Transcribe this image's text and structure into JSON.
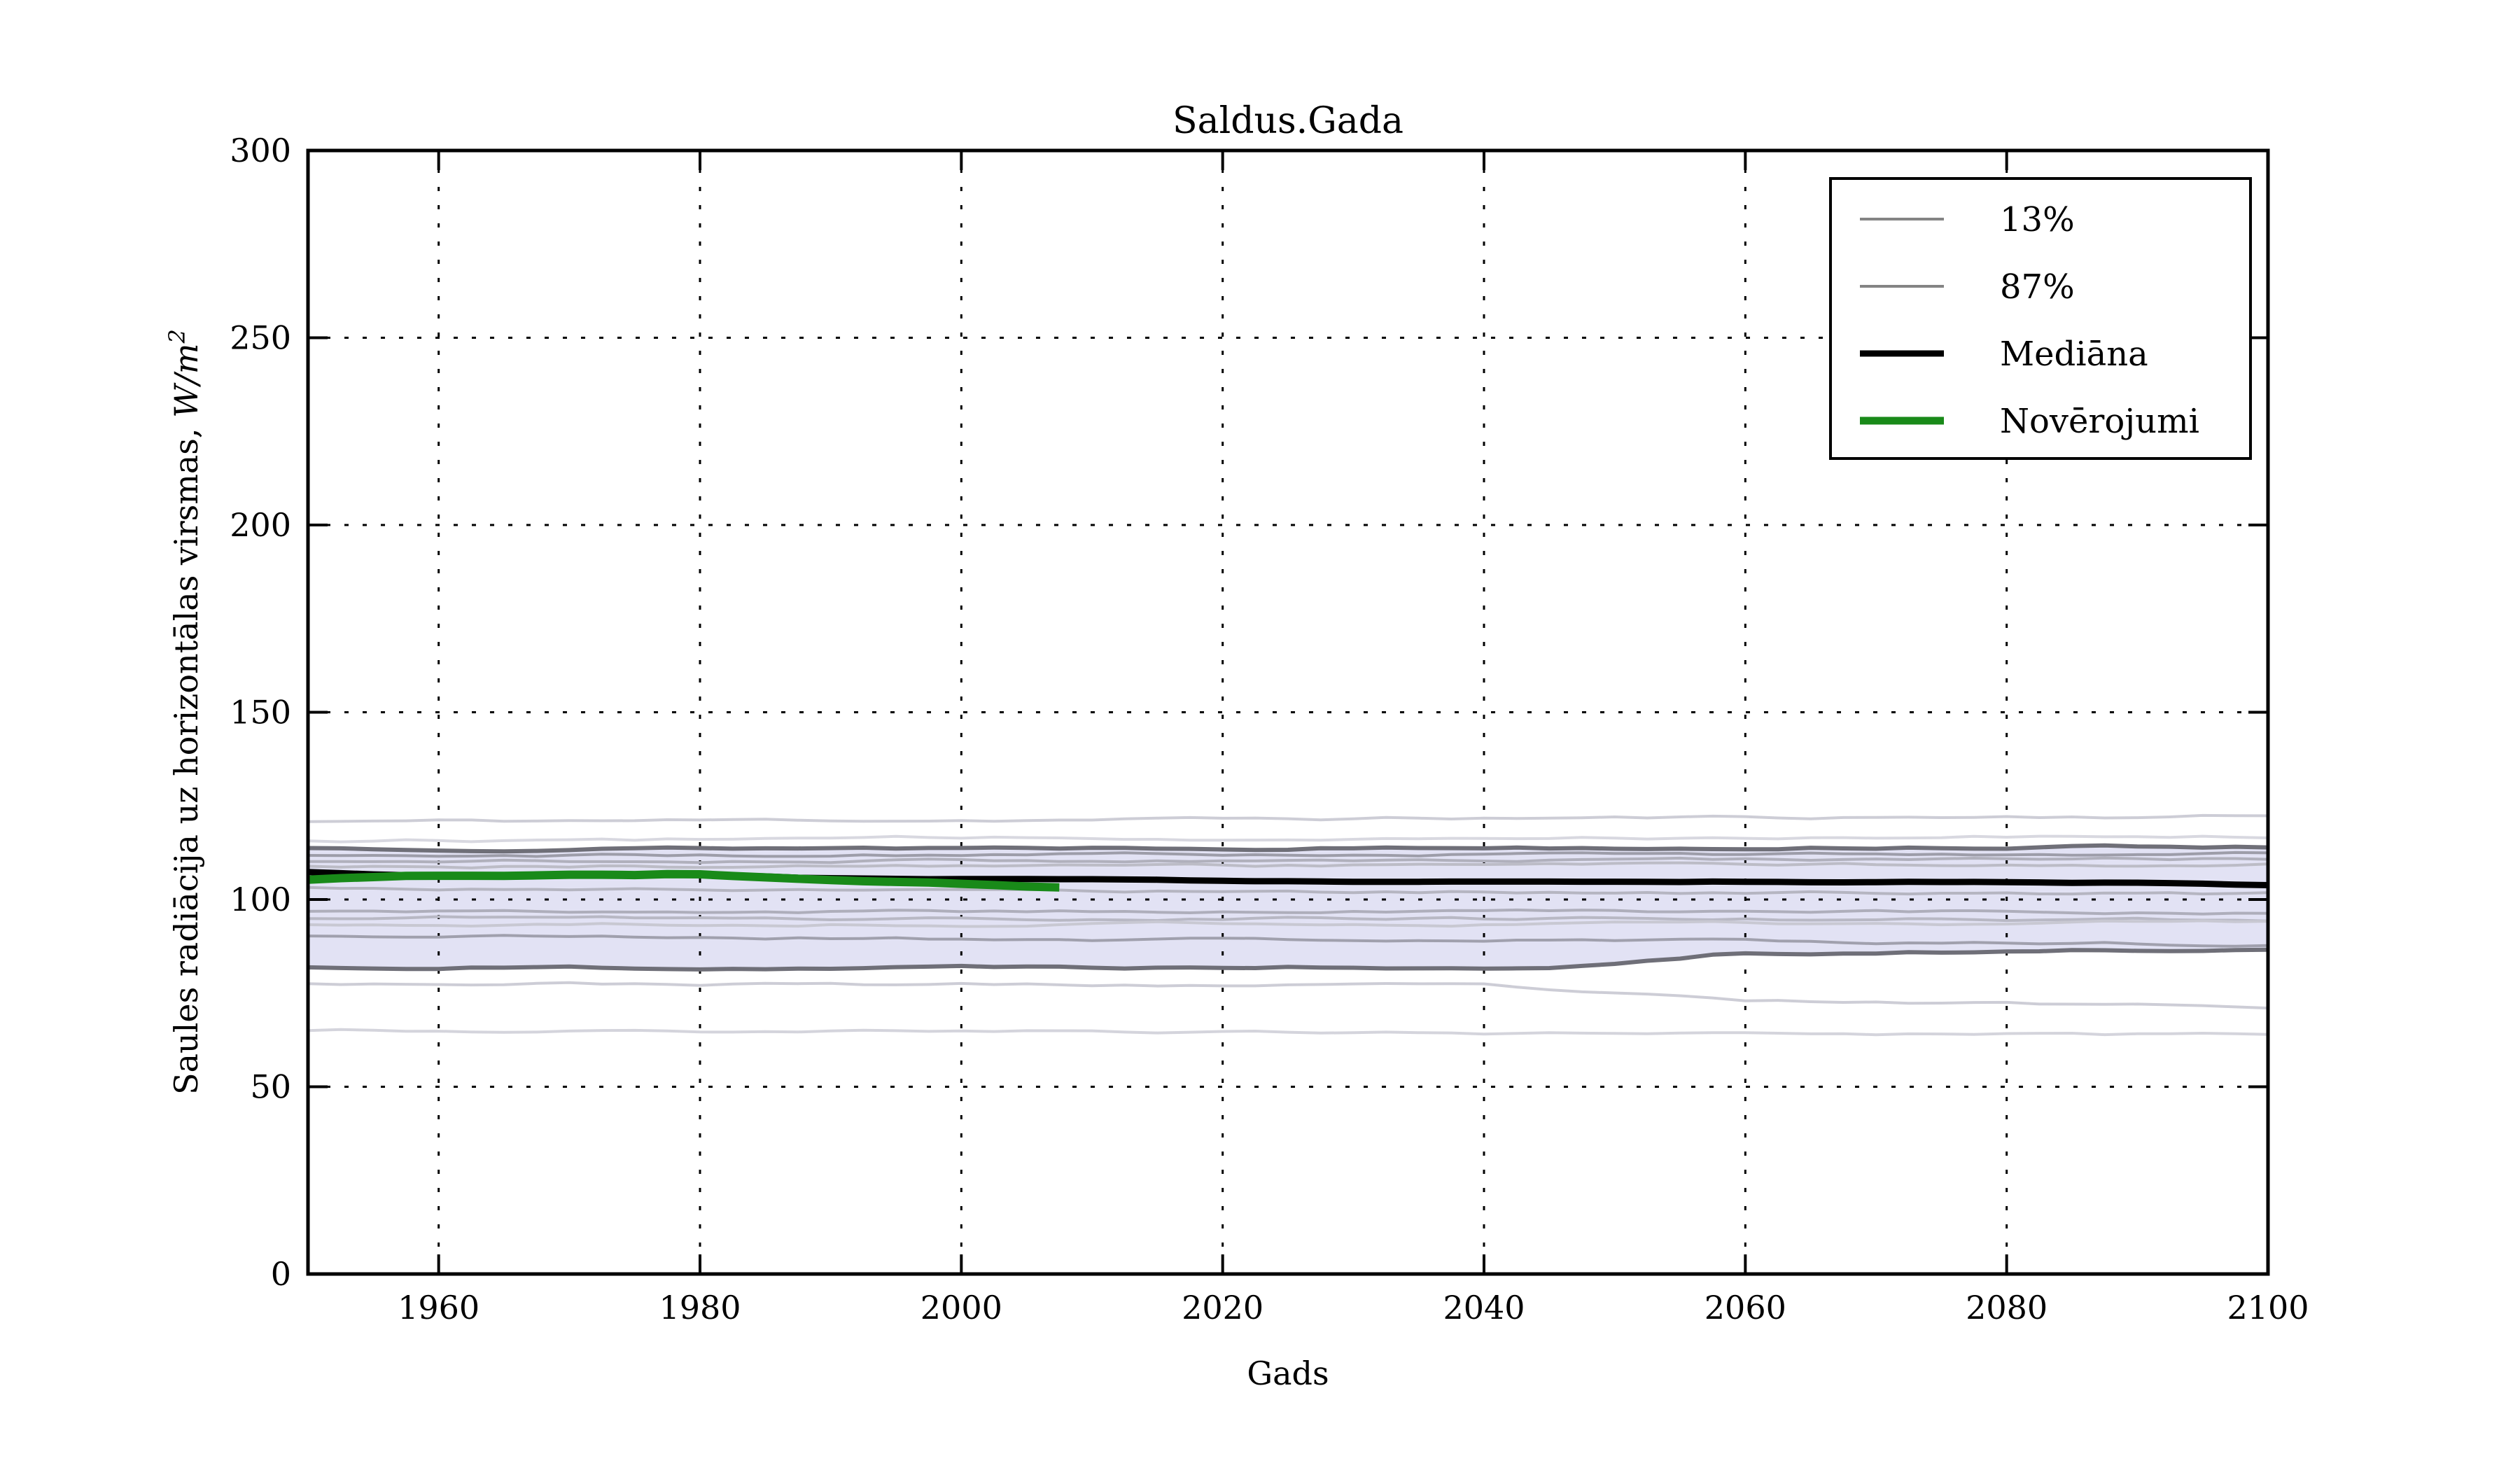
{
  "chart_data": {
    "type": "line",
    "title": "Saldus.Gada",
    "xlabel": "Gads",
    "ylabel": "Saules radiācija uz horizontālas virsmas, W/m²",
    "ylabel_prefix": "Saules radiācija uz horizontālas virsmas, ",
    "ylabel_math": "W/m",
    "ylabel_sup": "2",
    "xlim": [
      1950,
      2100
    ],
    "ylim": [
      0,
      300
    ],
    "xticks": [
      1960,
      1980,
      2000,
      2020,
      2040,
      2060,
      2080,
      2100
    ],
    "yticks": [
      0,
      50,
      100,
      150,
      200,
      250,
      300
    ],
    "grid": {
      "style": "dotted",
      "color": "#000000"
    },
    "colors": {
      "background": "#ffffff",
      "band_fill": "#e2e2f4",
      "band_edge": "#6f6f78",
      "median": "#000000",
      "observations": "#198a19",
      "legend_percentile": "#848484"
    },
    "legend": {
      "position": "upper right",
      "entries": [
        {
          "label": "13%",
          "color": "#848484",
          "line_width": 4
        },
        {
          "label": "87%",
          "color": "#848484",
          "line_width": 4
        },
        {
          "label": "Mediāna",
          "color": "#000000",
          "line_width": 9
        },
        {
          "label": "Novērojumi",
          "color": "#198a19",
          "line_width": 11
        }
      ]
    },
    "band": {
      "description": "13%-87% ensemble band",
      "fill": "#e2e2f4",
      "upper_start": 113.7,
      "upper_end": 114.2,
      "lower_start": 81.8,
      "lower_end": 86.6
    },
    "ensemble_lines": [
      {
        "x": [
          1950,
          2100
        ],
        "y": [
          120.8,
          122.3
        ],
        "color": "#cdcdd6",
        "width": 4,
        "amp": 0.7,
        "seed": 11
      },
      {
        "x": [
          1950,
          2100
        ],
        "y": [
          115.8,
          117.2
        ],
        "color": "#d8d8e0",
        "width": 4,
        "amp": 0.7,
        "seed": 12
      },
      {
        "role": "band_upper",
        "x": [
          1950,
          2100
        ],
        "y": [
          113.7,
          114.2
        ],
        "color": "#6f6f78",
        "width": 6,
        "amp": 0.6,
        "seed": 13
      },
      {
        "x": [
          1950,
          2100
        ],
        "y": [
          111.8,
          112.4
        ],
        "color": "#9d9da9",
        "width": 4,
        "amp": 0.6,
        "seed": 14
      },
      {
        "x": [
          1950,
          2100
        ],
        "y": [
          110.3,
          110.9
        ],
        "color": "#b0b0bc",
        "width": 4,
        "amp": 0.6,
        "seed": 15
      },
      {
        "x": [
          1950,
          2100
        ],
        "y": [
          108.8,
          109.4
        ],
        "color": "#bcbcc6",
        "width": 4,
        "amp": 0.65,
        "seed": 16
      },
      {
        "x": [
          1950,
          2100
        ],
        "y": [
          103.1,
          101.4
        ],
        "color": "#b5b5c1",
        "width": 4,
        "amp": 0.6,
        "seed": 17
      },
      {
        "x": [
          1950,
          2100
        ],
        "y": [
          96.9,
          96.6
        ],
        "color": "#aeaebb",
        "width": 4,
        "amp": 0.65,
        "seed": 18
      },
      {
        "x": [
          1950,
          2100
        ],
        "y": [
          95.2,
          94.6
        ],
        "color": "#b8b8c4",
        "width": 4,
        "amp": 0.65,
        "seed": 19
      },
      {
        "x": [
          1950,
          2100
        ],
        "y": [
          93.1,
          93.9
        ],
        "color": "#c8c8d2",
        "width": 4,
        "amp": 0.65,
        "seed": 20
      },
      {
        "x": [
          1950,
          2100
        ],
        "y": [
          90.3,
          88.2
        ],
        "color": "#a0a0ad",
        "width": 4,
        "amp": 0.7,
        "seed": 21
      },
      {
        "role": "band_lower",
        "x": [
          1950,
          2045,
          2058,
          2100
        ],
        "y": [
          81.8,
          82.3,
          85.9,
          86.6
        ],
        "color": "#6f6f78",
        "width": 6,
        "amp": 0.65,
        "seed": 22
      },
      {
        "x": [
          1950,
          2040,
          2060,
          2100
        ],
        "y": [
          77.8,
          76.8,
          72.6,
          71.6
        ],
        "color": "#cdcdd6",
        "width": 4,
        "amp": 0.65,
        "seed": 23
      },
      {
        "x": [
          1950,
          2100
        ],
        "y": [
          65.1,
          63.7
        ],
        "color": "#d4d4dc",
        "width": 4,
        "amp": 0.6,
        "seed": 24
      }
    ],
    "median": {
      "name": "Mediāna",
      "color": "#000000",
      "width": 9,
      "amp": 0.18,
      "seed": 31,
      "x": [
        1950,
        1955,
        1960,
        1970,
        1980,
        1988,
        1995,
        2005,
        2015,
        2030,
        2045,
        2060,
        2075,
        2090,
        2100
      ],
      "y": [
        107.3,
        106.6,
        106.4,
        106.5,
        106.6,
        105.8,
        105.4,
        105.3,
        105.1,
        104.8,
        104.6,
        104.8,
        104.6,
        104.4,
        103.7
      ]
    },
    "observations": {
      "name": "Novērojumi",
      "color": "#198a19",
      "width": 12,
      "amp": 0.15,
      "seed": 32,
      "x": [
        1950,
        1954,
        1958,
        1964,
        1970,
        1975,
        1979,
        1983,
        1988,
        1993,
        1998,
        2003,
        2007.5
      ],
      "y": [
        105.3,
        105.9,
        106.3,
        106.3,
        106.6,
        106.5,
        107.0,
        106.2,
        105.5,
        104.9,
        104.5,
        103.8,
        103.2
      ]
    }
  }
}
